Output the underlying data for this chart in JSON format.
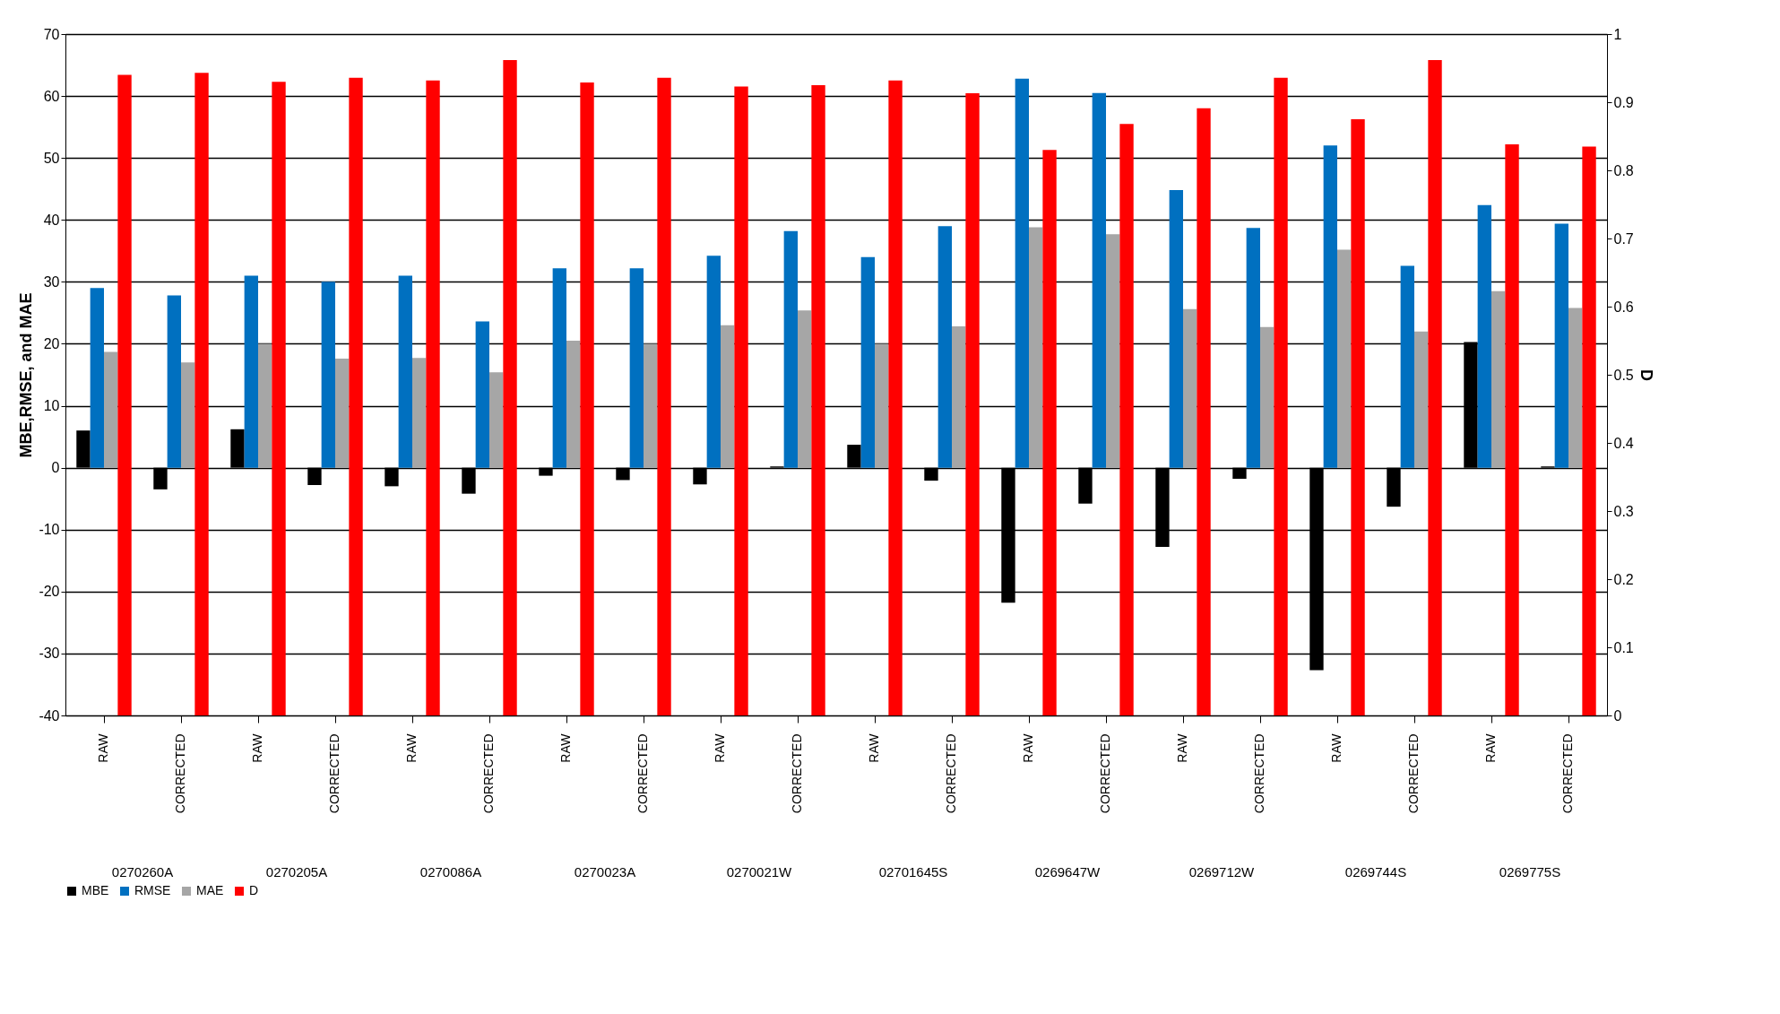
{
  "chart_data": {
    "type": "bar",
    "ylabel": "MBE,RMSE,  and MAE",
    "y2label": "D",
    "categories": [
      "RAW",
      "CORRECTED",
      "RAW",
      "CORRECTED",
      "RAW",
      "CORRECTED",
      "RAW",
      "CORRECTED",
      "RAW",
      "CORRECTED",
      "RAW",
      "CORRECTED",
      "RAW",
      "CORRECTED",
      "RAW",
      "CORRECTED",
      "RAW",
      "CORRECTED",
      "RAW",
      "CORRECTED"
    ],
    "annotations": [
      "0270260A",
      "0270205A",
      "0270086A",
      "0270023A",
      "0270021W",
      "02701645S",
      "0269647W",
      "0269712W",
      "0269744S",
      "0269775S"
    ],
    "series": [
      {
        "name": "MBE",
        "color": "#000000",
        "values": [
          6,
          -3.5,
          6.2,
          -2.8,
          -3,
          -4.2,
          -1.3,
          -2,
          -2.7,
          0.2,
          3.7,
          -2.1,
          -21.8,
          -5.8,
          -12.8,
          -1.8,
          -32.7,
          -6.3,
          20.3,
          0.2
        ]
      },
      {
        "name": "RMSE",
        "color": "#0070c0",
        "values": [
          29,
          27.8,
          31,
          30,
          31,
          23.6,
          32.2,
          32.2,
          34.2,
          38.2,
          34,
          39,
          62.8,
          60.5,
          44.8,
          38.7,
          52,
          32.6,
          42.4,
          39.4
        ]
      },
      {
        "name": "MAE",
        "color": "#a6a6a6",
        "values": [
          18.7,
          17,
          20,
          17.6,
          17.7,
          15.4,
          20.5,
          20,
          23,
          25.4,
          20,
          22.8,
          38.8,
          37.7,
          25.6,
          22.7,
          35.2,
          22,
          28.5,
          25.8
        ]
      },
      {
        "name": "D",
        "color": "#ff0000",
        "axis": "y2",
        "values": [
          0.94,
          0.943,
          0.93,
          0.936,
          0.932,
          0.962,
          0.929,
          0.936,
          0.923,
          0.925,
          0.932,
          0.913,
          0.83,
          0.868,
          0.891,
          0.936,
          0.875,
          0.962,
          0.838,
          0.835
        ]
      }
    ],
    "ylim": [
      -40,
      70
    ],
    "yticks": [
      -40,
      -30,
      -20,
      -10,
      0,
      10,
      20,
      30,
      40,
      50,
      60,
      70
    ],
    "y2lim": [
      0,
      1
    ],
    "y2ticks": [
      0,
      0.1,
      0.2,
      0.3,
      0.4,
      0.5,
      0.6,
      0.7,
      0.8,
      0.9,
      1
    ],
    "grid": "y",
    "legend": "bottom"
  }
}
